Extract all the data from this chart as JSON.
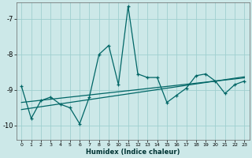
{
  "xlabel": "Humidex (Indice chaleur)",
  "bg_color": "#cce8e8",
  "grid_color": "#9fcfcf",
  "line_color": "#006666",
  "xlim": [
    -0.5,
    23.5
  ],
  "ylim": [
    -10.4,
    -6.55
  ],
  "yticks": [
    -10,
    -9,
    -8,
    -7
  ],
  "xticks": [
    0,
    1,
    2,
    3,
    4,
    5,
    6,
    7,
    8,
    9,
    10,
    11,
    12,
    13,
    14,
    15,
    16,
    17,
    18,
    19,
    20,
    21,
    22,
    23
  ],
  "x": [
    0,
    1,
    2,
    3,
    4,
    5,
    6,
    7,
    8,
    9,
    10,
    11,
    12,
    13,
    14,
    15,
    16,
    17,
    18,
    19,
    20,
    21,
    22,
    23
  ],
  "y_main": [
    -8.9,
    -9.8,
    -9.3,
    -9.2,
    -9.4,
    -9.5,
    -9.95,
    -9.2,
    -8.0,
    -7.75,
    -8.85,
    -6.65,
    -8.55,
    -8.65,
    -8.65,
    -9.35,
    -9.15,
    -8.95,
    -8.6,
    -8.55,
    -8.75,
    -9.1,
    -8.85,
    -8.75
  ],
  "y_trend1": [
    -9.35,
    -9.32,
    -9.29,
    -9.26,
    -9.23,
    -9.2,
    -9.17,
    -9.14,
    -9.11,
    -9.08,
    -9.05,
    -9.02,
    -8.99,
    -8.96,
    -8.93,
    -8.9,
    -8.87,
    -8.84,
    -8.81,
    -8.78,
    -8.75,
    -8.72,
    -8.69,
    -8.66
  ],
  "y_trend2": [
    -9.55,
    -9.51,
    -9.47,
    -9.43,
    -9.39,
    -9.35,
    -9.31,
    -9.27,
    -9.23,
    -9.19,
    -9.15,
    -9.11,
    -9.07,
    -9.03,
    -8.99,
    -8.95,
    -8.91,
    -8.87,
    -8.83,
    -8.79,
    -8.75,
    -8.71,
    -8.67,
    -8.63
  ]
}
